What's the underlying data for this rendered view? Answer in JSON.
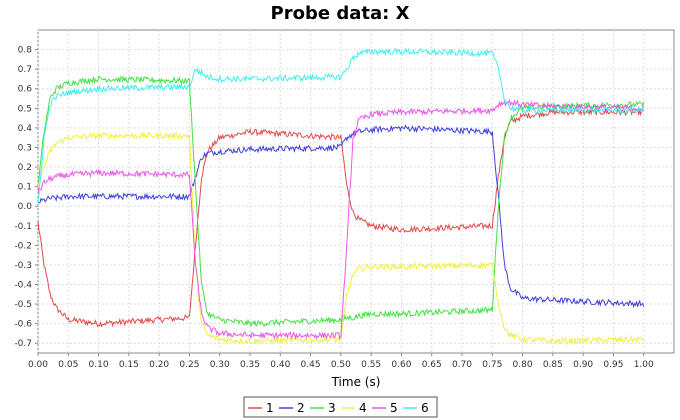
{
  "chart_data": {
    "type": "line",
    "title": "Probe data: X",
    "xlabel": "Time (s)",
    "ylabel": "",
    "xlim": [
      0,
      1.05
    ],
    "ylim": [
      -0.75,
      0.9
    ],
    "xticks": [
      0.0,
      0.05,
      0.1,
      0.15,
      0.2,
      0.25,
      0.3,
      0.35,
      0.4,
      0.45,
      0.5,
      0.55,
      0.6,
      0.65,
      0.7,
      0.75,
      0.8,
      0.85,
      0.9,
      0.95,
      1.0
    ],
    "yticks": [
      0.8,
      0.7,
      0.6,
      0.5,
      0.4,
      0.3,
      0.2,
      0.1,
      0.0,
      -0.1,
      -0.2,
      -0.3,
      -0.4,
      -0.5,
      -0.6,
      -0.7
    ],
    "grid": true,
    "legend_position": "bottom",
    "x": [
      0.0,
      0.01,
      0.02,
      0.03,
      0.05,
      0.1,
      0.25,
      0.26,
      0.27,
      0.28,
      0.3,
      0.35,
      0.5,
      0.51,
      0.52,
      0.53,
      0.55,
      0.6,
      0.75,
      0.76,
      0.77,
      0.78,
      0.8,
      0.85,
      1.0
    ],
    "series": [
      {
        "name": "1",
        "color": "#e34a4a",
        "values": [
          -0.08,
          -0.3,
          -0.45,
          -0.52,
          -0.58,
          -0.6,
          -0.57,
          -0.2,
          0.15,
          0.28,
          0.35,
          0.38,
          0.35,
          0.1,
          -0.03,
          -0.07,
          -0.1,
          -0.12,
          -0.1,
          0.15,
          0.35,
          0.43,
          0.46,
          0.48,
          0.48
        ]
      },
      {
        "name": "2",
        "color": "#4040e0",
        "values": [
          0.02,
          0.03,
          0.04,
          0.04,
          0.05,
          0.05,
          0.05,
          0.15,
          0.25,
          0.27,
          0.28,
          0.29,
          0.3,
          0.35,
          0.37,
          0.38,
          0.39,
          0.4,
          0.38,
          0.05,
          -0.3,
          -0.42,
          -0.47,
          -0.48,
          -0.5
        ]
      },
      {
        "name": "3",
        "color": "#44e044",
        "values": [
          0.1,
          0.38,
          0.55,
          0.6,
          0.63,
          0.65,
          0.64,
          0.1,
          -0.4,
          -0.55,
          -0.58,
          -0.6,
          -0.58,
          -0.57,
          -0.57,
          -0.56,
          -0.55,
          -0.55,
          -0.53,
          0.0,
          0.35,
          0.45,
          0.5,
          0.51,
          0.52
        ]
      },
      {
        "name": "4",
        "color": "#f0f040",
        "values": [
          0.1,
          0.2,
          0.28,
          0.32,
          0.35,
          0.36,
          0.36,
          -0.3,
          -0.6,
          -0.66,
          -0.68,
          -0.69,
          -0.68,
          -0.45,
          -0.35,
          -0.32,
          -0.31,
          -0.31,
          -0.3,
          -0.5,
          -0.62,
          -0.66,
          -0.68,
          -0.69,
          -0.68
        ]
      },
      {
        "name": "5",
        "color": "#ee55ee",
        "values": [
          0.07,
          0.12,
          0.14,
          0.15,
          0.16,
          0.17,
          0.16,
          -0.3,
          -0.55,
          -0.62,
          -0.65,
          -0.66,
          -0.66,
          -0.2,
          0.35,
          0.44,
          0.47,
          0.48,
          0.49,
          0.52,
          0.53,
          0.53,
          0.52,
          0.51,
          0.5
        ]
      },
      {
        "name": "6",
        "color": "#44eeee",
        "values": [
          0.0,
          0.35,
          0.52,
          0.56,
          0.58,
          0.6,
          0.61,
          0.7,
          0.68,
          0.66,
          0.65,
          0.65,
          0.66,
          0.7,
          0.76,
          0.78,
          0.79,
          0.79,
          0.78,
          0.7,
          0.55,
          0.5,
          0.49,
          0.49,
          0.49
        ]
      }
    ]
  }
}
